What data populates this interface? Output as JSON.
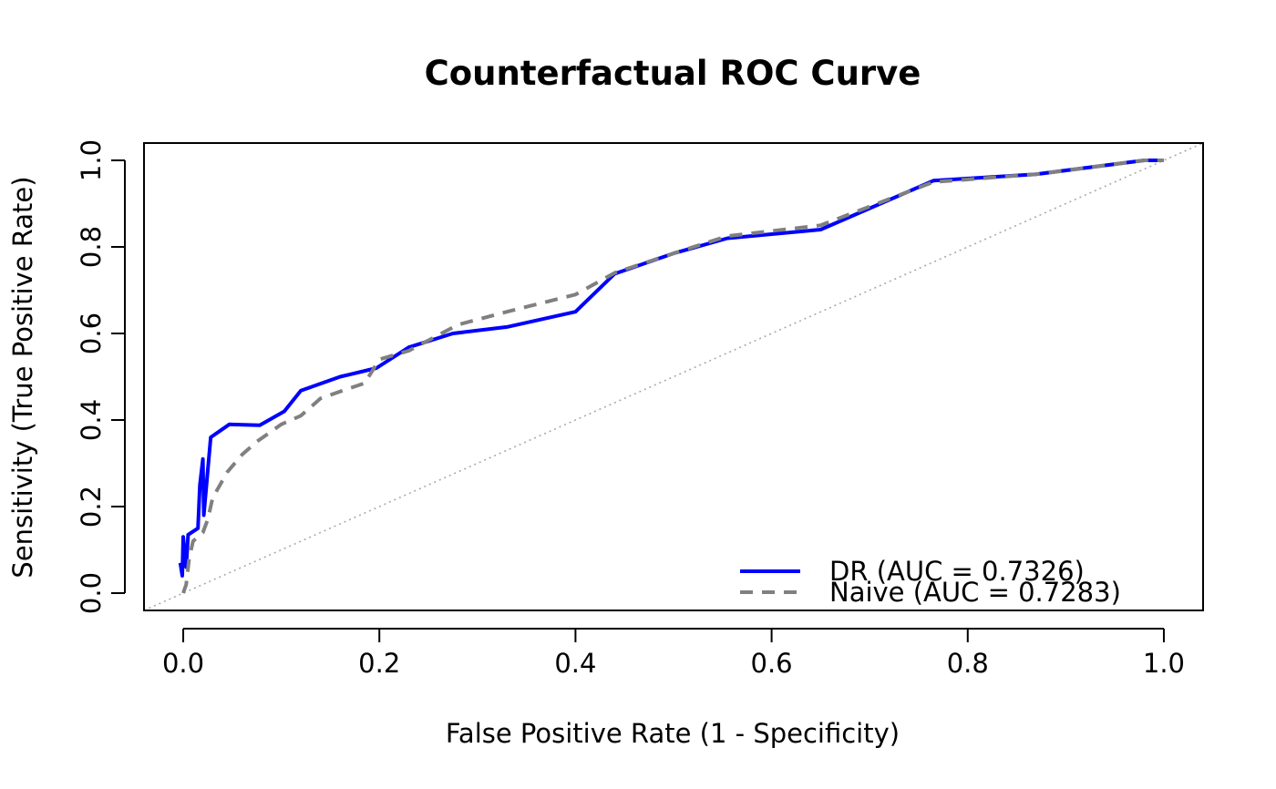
{
  "chart_data": {
    "type": "line",
    "title": "Counterfactual ROC Curve",
    "xlabel": "False Positive Rate (1 - Specificity)",
    "ylabel": "Sensitivity (True Positive Rate)",
    "xlim": [
      -0.04,
      1.04
    ],
    "ylim": [
      -0.04,
      1.04
    ],
    "x_ticks": [
      0.0,
      0.2,
      0.4,
      0.6,
      0.8,
      1.0
    ],
    "x_tick_labels": [
      "0.0",
      "0.2",
      "0.4",
      "0.6",
      "0.8",
      "1.0"
    ],
    "y_ticks": [
      0.0,
      0.2,
      0.4,
      0.6,
      0.8,
      1.0
    ],
    "y_tick_labels": [
      "0.0",
      "0.2",
      "0.4",
      "0.6",
      "0.8",
      "1.0"
    ],
    "grid": false,
    "legend_position": "bottom-right",
    "reference_line": {
      "x": [
        0,
        1
      ],
      "y": [
        0,
        1
      ],
      "color": "#aaaaaa",
      "style": "dotted"
    },
    "series": [
      {
        "name": "DR (AUC = 0.7326)",
        "color": "#0000ff",
        "style": "solid",
        "x": [
          -0.003,
          -0.001,
          0.0,
          0.002,
          0.003,
          0.005,
          0.015,
          0.017,
          0.02,
          0.021,
          0.028,
          0.047,
          0.078,
          0.103,
          0.12,
          0.16,
          0.197,
          0.23,
          0.275,
          0.33,
          0.4,
          0.44,
          0.5,
          0.555,
          0.65,
          0.765,
          0.87,
          0.98,
          1.0
        ],
        "y": [
          0.07,
          0.04,
          0.13,
          0.08,
          0.06,
          0.135,
          0.15,
          0.25,
          0.31,
          0.18,
          0.36,
          0.39,
          0.388,
          0.42,
          0.468,
          0.5,
          0.52,
          0.568,
          0.6,
          0.615,
          0.65,
          0.738,
          0.785,
          0.82,
          0.84,
          0.953,
          0.968,
          1.0,
          1.0
        ]
      },
      {
        "name": "Naive (AUC = 0.7283)",
        "color": "#808080",
        "style": "dashed",
        "x": [
          0.0,
          0.003,
          0.006,
          0.01,
          0.02,
          0.025,
          0.03,
          0.045,
          0.06,
          0.075,
          0.1,
          0.12,
          0.14,
          0.165,
          0.185,
          0.2,
          0.23,
          0.28,
          0.33,
          0.4,
          0.44,
          0.5,
          0.555,
          0.65,
          0.765,
          0.87,
          0.98,
          1.0
        ],
        "y": [
          0.0,
          0.02,
          0.08,
          0.12,
          0.14,
          0.17,
          0.22,
          0.28,
          0.32,
          0.35,
          0.39,
          0.41,
          0.45,
          0.47,
          0.485,
          0.54,
          0.56,
          0.62,
          0.65,
          0.69,
          0.74,
          0.785,
          0.825,
          0.85,
          0.95,
          0.968,
          1.0,
          1.0
        ]
      }
    ]
  }
}
